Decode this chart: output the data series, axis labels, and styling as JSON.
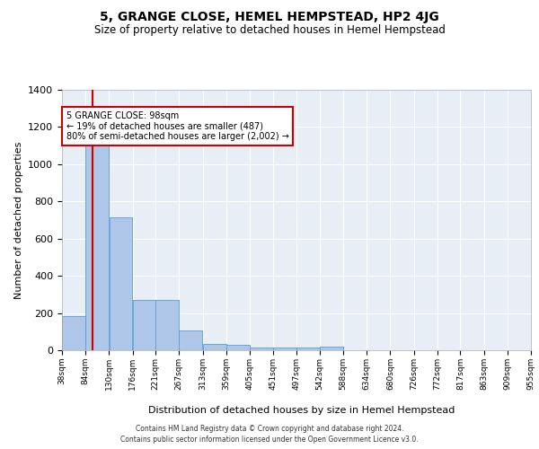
{
  "title": "5, GRANGE CLOSE, HEMEL HEMPSTEAD, HP2 4JG",
  "subtitle": "Size of property relative to detached houses in Hemel Hempstead",
  "xlabel": "Distribution of detached houses by size in Hemel Hempstead",
  "ylabel": "Number of detached properties",
  "footer_line1": "Contains HM Land Registry data © Crown copyright and database right 2024.",
  "footer_line2": "Contains public sector information licensed under the Open Government Licence v3.0.",
  "annotation_title": "5 GRANGE CLOSE: 98sqm",
  "annotation_line1": "← 19% of detached houses are smaller (487)",
  "annotation_line2": "80% of semi-detached houses are larger (2,002) →",
  "property_size": 98,
  "bin_edges": [
    38,
    84,
    130,
    176,
    221,
    267,
    313,
    359,
    405,
    451,
    497,
    542,
    588,
    634,
    680,
    726,
    772,
    817,
    863,
    909,
    955
  ],
  "bar_heights": [
    185,
    1148,
    716,
    270,
    270,
    106,
    35,
    28,
    13,
    15,
    14,
    20,
    0,
    0,
    0,
    0,
    0,
    0,
    0,
    0
  ],
  "bar_color": "#aec6e8",
  "bar_edge_color": "#5b9bd5",
  "red_line_color": "#cc0000",
  "annotation_box_color": "#cc0000",
  "background_color": "#e8eef5",
  "ylim": [
    0,
    1400
  ],
  "yticks": [
    0,
    200,
    400,
    600,
    800,
    1000,
    1200,
    1400
  ]
}
